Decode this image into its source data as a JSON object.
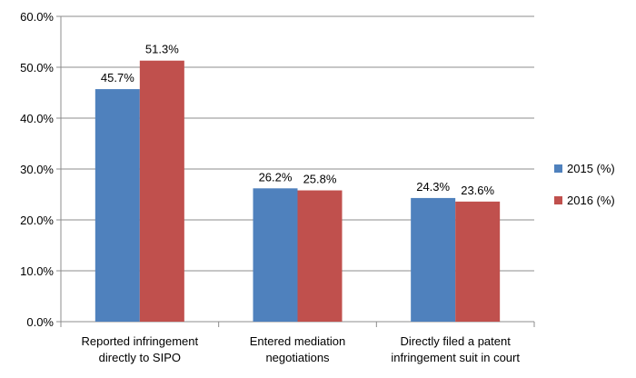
{
  "chart_data": {
    "type": "bar",
    "categories": [
      [
        "Reported infringement",
        "directly to SIPO"
      ],
      [
        "Entered mediation",
        "negotiations"
      ],
      [
        "Directly filed a patent",
        "infringement suit in court"
      ]
    ],
    "series": [
      {
        "name": "2015 (%)",
        "values": [
          45.7,
          26.2,
          24.3
        ],
        "labels": [
          "45.7%",
          "26.2%",
          "24.3%"
        ],
        "color": "#4f81bd"
      },
      {
        "name": "2016 (%)",
        "values": [
          51.3,
          25.8,
          23.6
        ],
        "labels": [
          "51.3%",
          "25.8%",
          "23.6%"
        ],
        "color": "#c0504d"
      }
    ],
    "ylim": [
      0,
      60
    ],
    "yticks": [
      "0.0%",
      "10.0%",
      "20.0%",
      "30.0%",
      "40.0%",
      "50.0%",
      "60.0%"
    ],
    "grid": true,
    "legend": "right",
    "title": "",
    "xlabel": "",
    "ylabel": ""
  }
}
